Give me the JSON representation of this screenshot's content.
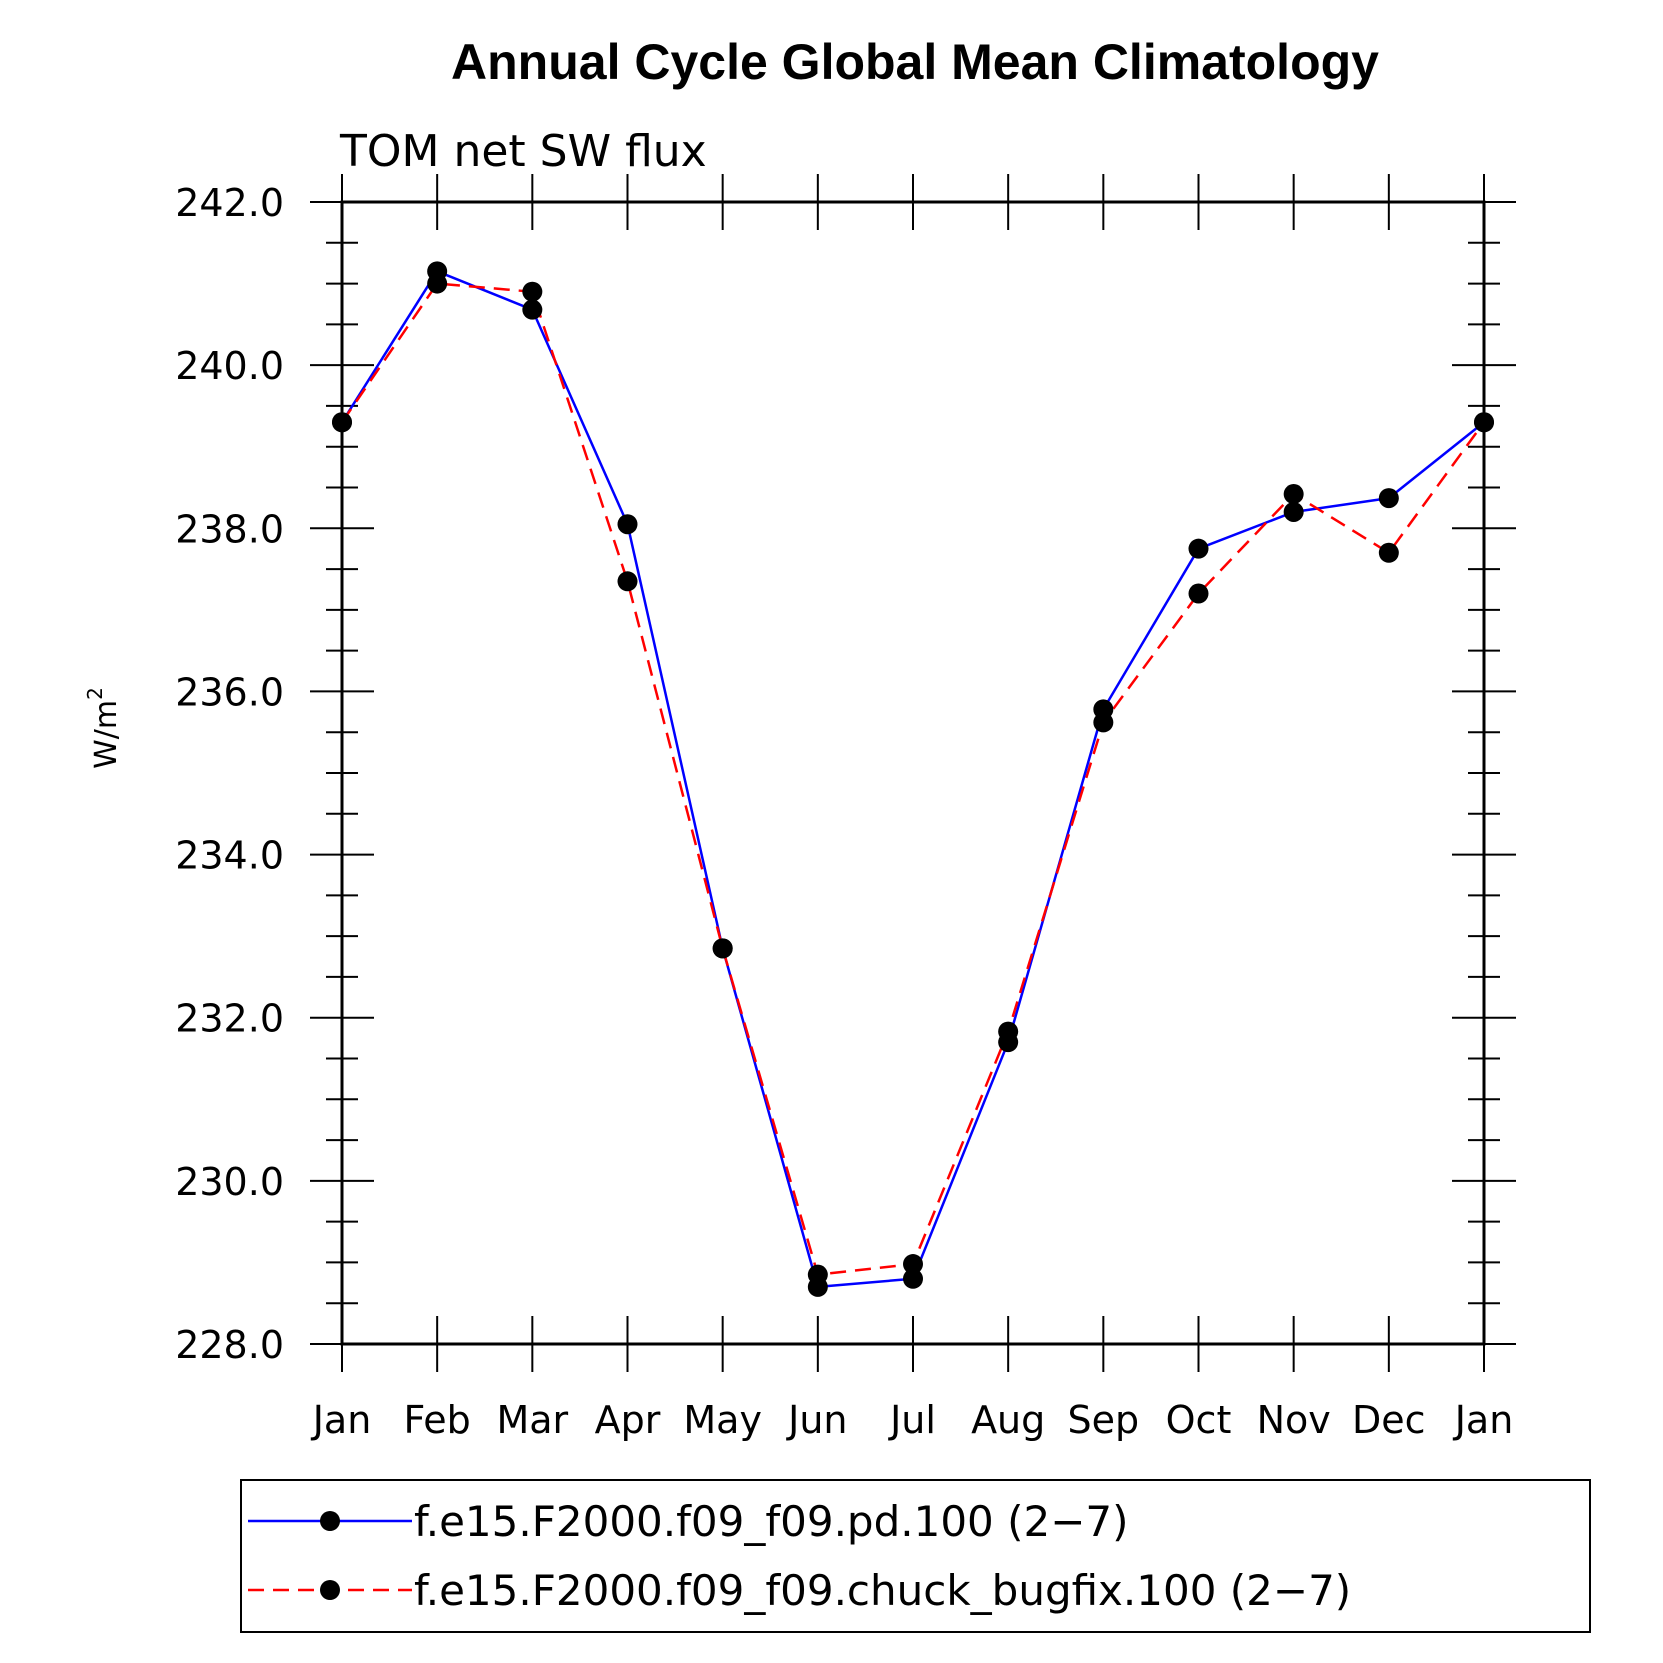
{
  "chart_data": {
    "type": "line",
    "title": "Annual Cycle Global Mean Climatology",
    "subtitle": "TOM net SW flux",
    "ylabel": "W/m",
    "ylabel_superscript": "2",
    "xlabel": "",
    "categories": [
      "Jan",
      "Feb",
      "Mar",
      "Apr",
      "May",
      "Jun",
      "Jul",
      "Aug",
      "Sep",
      "Oct",
      "Nov",
      "Dec",
      "Jan"
    ],
    "ylim": [
      228.0,
      242.0
    ],
    "yticks": [
      "228.0",
      "230.0",
      "232.0",
      "234.0",
      "236.0",
      "238.0",
      "240.0",
      "242.0"
    ],
    "grid": false,
    "legend_position": "bottom",
    "series": [
      {
        "name": "f.e15.F2000.f09_f09.pd.100 (2−7)",
        "color": "#0000ff",
        "dash": "solid",
        "values": [
          239.3,
          241.15,
          240.68,
          238.05,
          232.85,
          228.7,
          228.8,
          231.7,
          235.78,
          237.75,
          238.2,
          238.37,
          239.3
        ]
      },
      {
        "name": "f.e15.F2000.f09_f09.chuck_bugfix.100 (2−7)",
        "color": "#ff0000",
        "dash": "dashed",
        "values": [
          239.3,
          241.0,
          240.9,
          237.35,
          232.85,
          228.85,
          228.98,
          231.83,
          235.62,
          237.2,
          238.42,
          237.7,
          239.3
        ]
      }
    ]
  }
}
